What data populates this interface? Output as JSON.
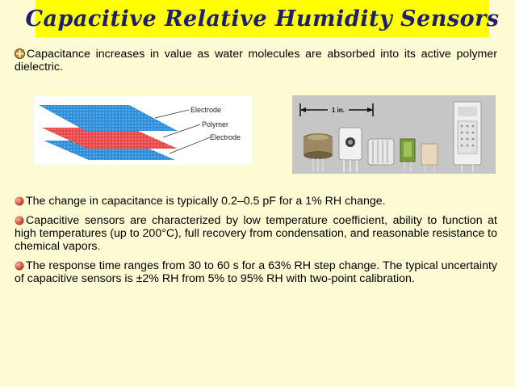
{
  "title": "Capacitive Relative Humidity Sensors",
  "intro": "Capacitance increases in value as water molecules are absorbed into its active polymer dielectric.",
  "figure_left": {
    "label_electrode_top": "Electrode",
    "label_polymer": "Polymer",
    "label_electrode_bottom": "Electrode"
  },
  "figure_right": {
    "scale_label": "1 in."
  },
  "bullets": [
    "The change in capacitance is typically 0.2–0.5 pF for a 1% RH change.",
    "Capacitive sensors are characterized by low temperature coefficient, ability to function at high temperatures (up to 200°C), full recovery from condensation, and reasonable resistance to chemical vapors.",
    "The response time ranges from 30 to 60 s for a 63% RH step change. The typical uncertainty of capacitive sensors is ±2% RH from 5% to 95% RH with two-point calibration."
  ],
  "colors": {
    "background": "#fdfbd3",
    "title_bar": "#ffff00",
    "title_text": "#1f1f6e",
    "bullet": "#c0392b",
    "electrode_plate": "#2f8fd8",
    "polymer_plate": "#e84a4a"
  },
  "icons": {
    "intro_bullet": "cross-circle-icon",
    "list_bullet": "red-ball-icon"
  }
}
